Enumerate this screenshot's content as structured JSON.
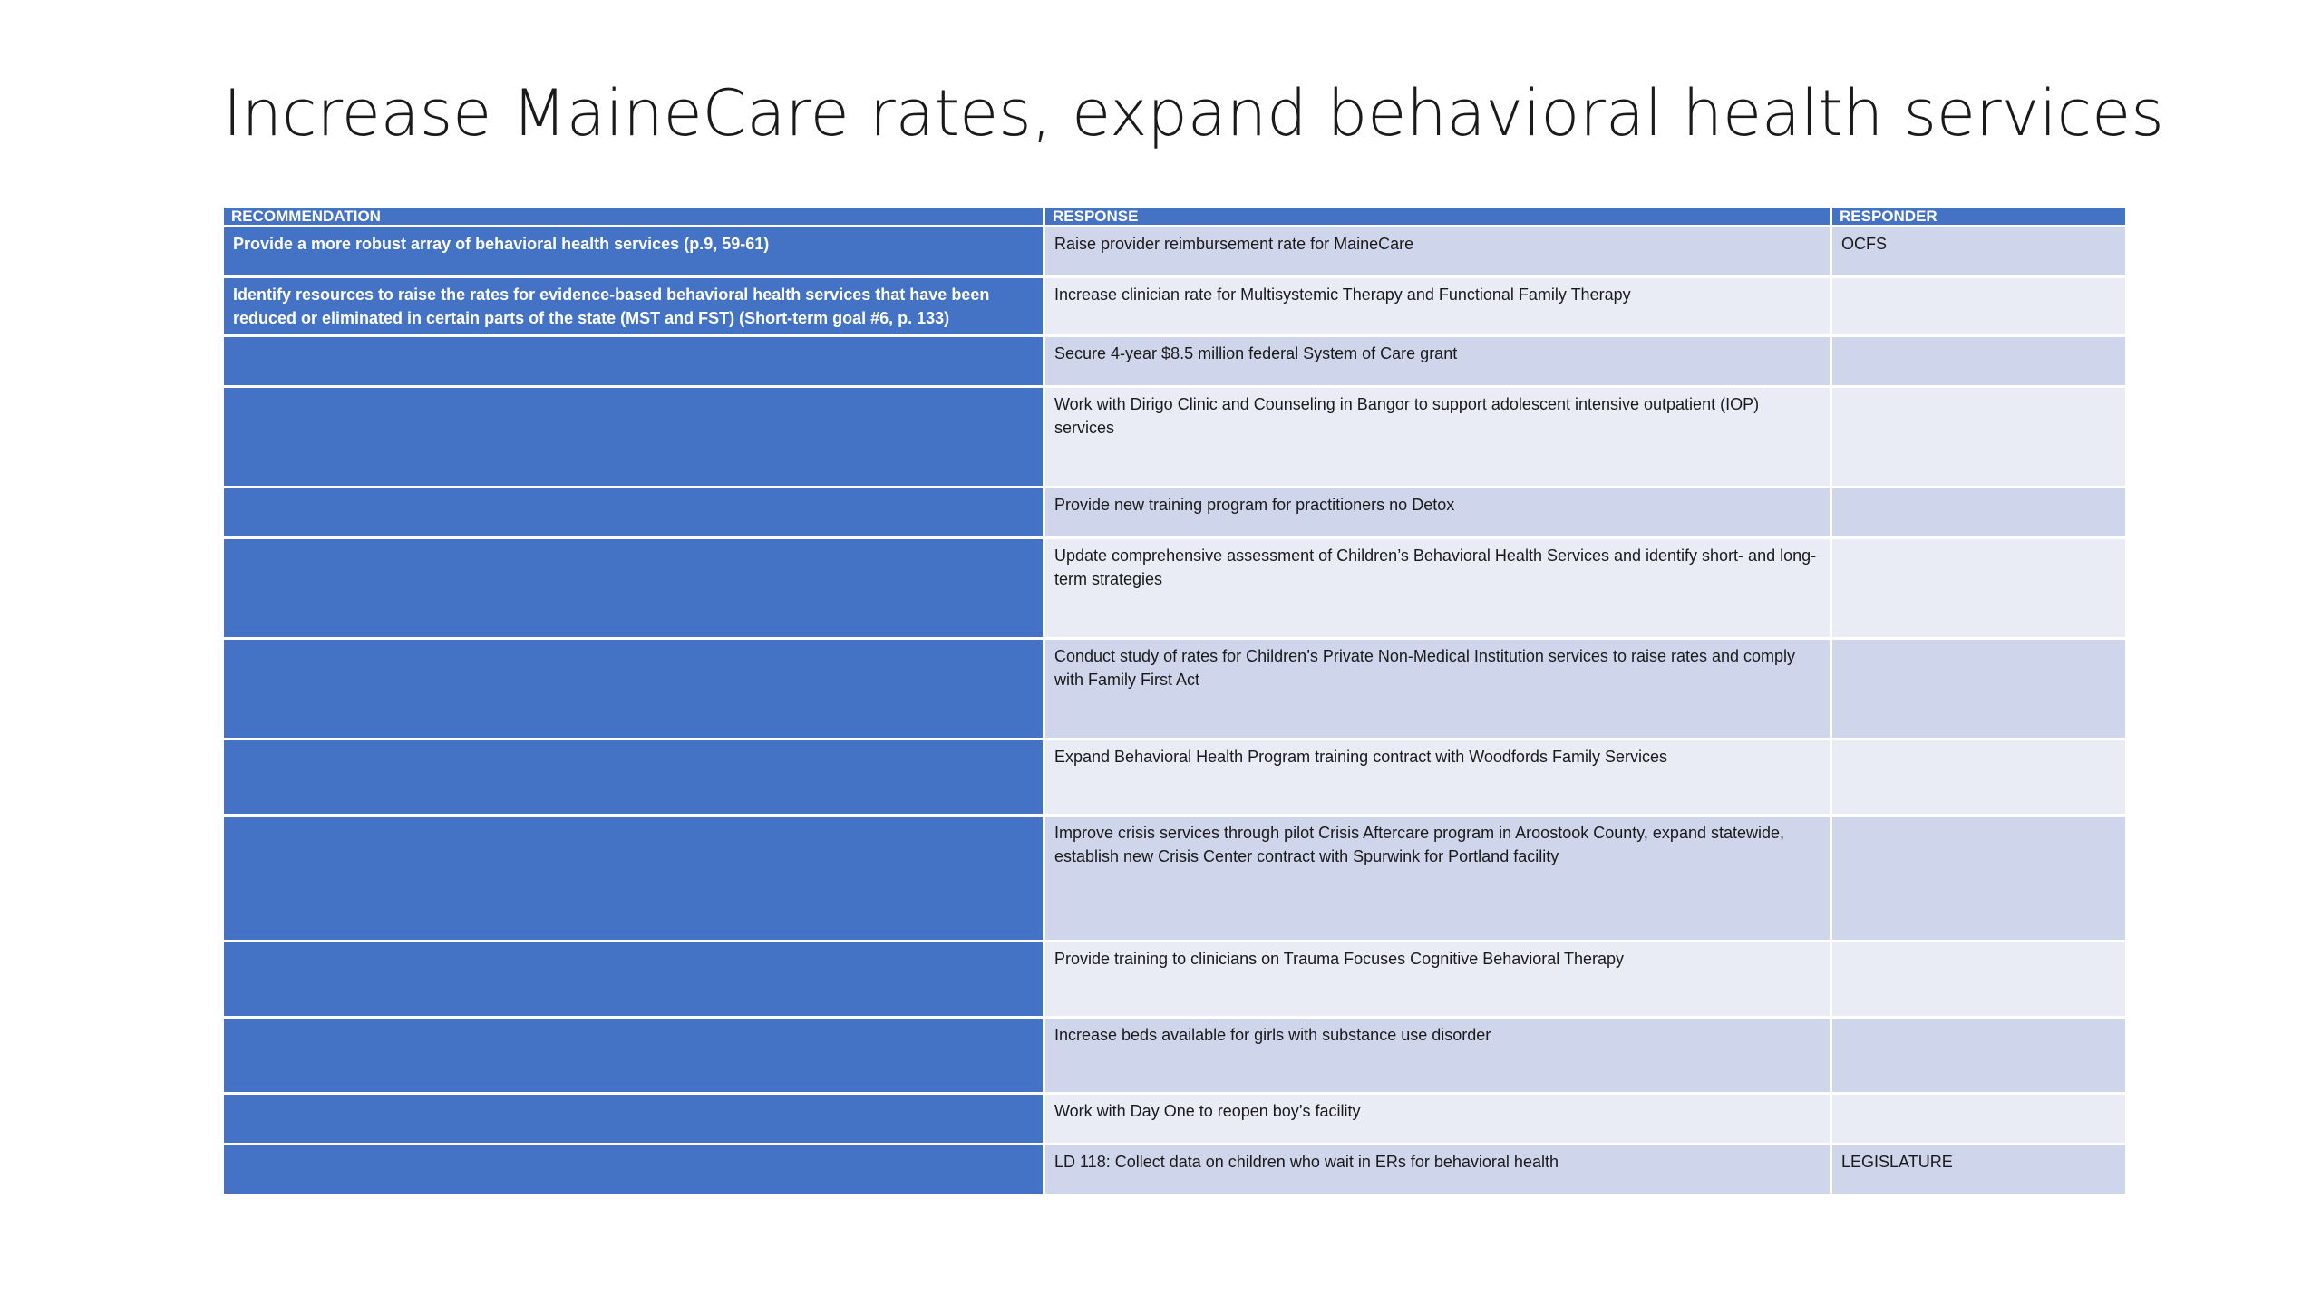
{
  "title": "Increase MaineCare rates, expand behavioral health services",
  "table": {
    "headers": [
      "RECOMMENDATION",
      "RESPONSE",
      "RESPONDER"
    ],
    "rows": [
      {
        "recommendation": "Provide a more robust array of behavioral health services (p.9, 59-61)",
        "response": "Raise provider reimbursement rate for MaineCare",
        "responder": "OCFS"
      },
      {
        "recommendation": " Identify resources to raise the rates for evidence-based behavioral health services that have been reduced or eliminated in certain parts of the state (MST and FST) (Short-term goal #6, p. 133)",
        "response": "Increase clinician rate for Multisystemic Therapy and Functional Family Therapy",
        "responder": ""
      },
      {
        "recommendation": "",
        "response": "Secure 4-year $8.5 million federal System of Care grant",
        "responder": ""
      },
      {
        "recommendation": "",
        "response": "Work with Dirigo Clinic and Counseling in Bangor to support adolescent intensive outpatient (IOP) services",
        "responder": ""
      },
      {
        "recommendation": "",
        "response": "Provide new training program for practitioners no Detox",
        "responder": ""
      },
      {
        "recommendation": "",
        "response": "Update comprehensive assessment of Children’s Behavioral Health Services and identify short- and long-term strategies",
        "responder": ""
      },
      {
        "recommendation": "",
        "response": "Conduct study of rates for Children’s Private Non-Medical Institution services to raise rates and comply with Family First Act",
        "responder": ""
      },
      {
        "recommendation": "",
        "response": "Expand Behavioral Health Program training contract with Woodfords Family Services",
        "responder": ""
      },
      {
        "recommendation": "",
        "response": "Improve crisis services through pilot Crisis Aftercare program in Aroostook County, expand statewide, establish new Crisis Center contract with Spurwink for Portland facility",
        "responder": ""
      },
      {
        "recommendation": "",
        "response": "Provide training to clinicians on Trauma Focuses Cognitive Behavioral Therapy",
        "responder": ""
      },
      {
        "recommendation": "",
        "response": "Increase beds available for girls with substance use disorder",
        "responder": ""
      },
      {
        "recommendation": "",
        "response": "Work with Day One to reopen boy’s facility",
        "responder": ""
      },
      {
        "recommendation": "",
        "response": "LD 118: Collect data on children who wait in ERs for behavioral health",
        "responder": "LEGISLATURE"
      }
    ]
  }
}
